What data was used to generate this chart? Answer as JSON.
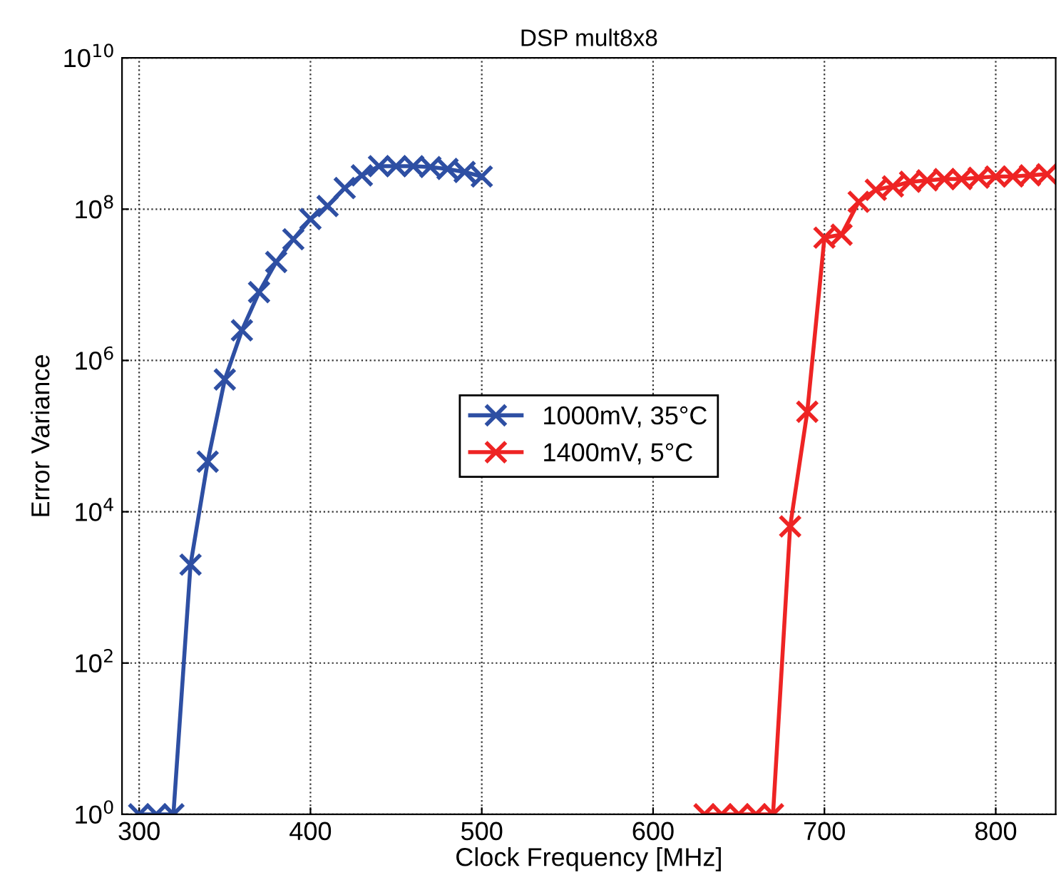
{
  "chart_data": {
    "type": "line",
    "title": "DSP mult8x8",
    "xlabel": "Clock Frequency [MHz]",
    "ylabel": "Error Variance",
    "log": "y",
    "grid": true,
    "legend": "center",
    "marker": "cross",
    "line_style": "solid",
    "xlim": [
      290,
      835
    ],
    "xticks": [
      300,
      400,
      500,
      600,
      700,
      800
    ],
    "ylim": [
      1,
      10000000000.0
    ],
    "yticks": [
      {
        "value": 1,
        "label": "10$^{0}$"
      },
      {
        "value": 100,
        "label": "10$^{2}$"
      },
      {
        "value": 10000,
        "label": "10$^{4}$"
      },
      {
        "value": 1000000,
        "label": "10$^{6}$"
      },
      {
        "value": 100000000,
        "label": "10$^{8}$"
      },
      {
        "value": 10000000000,
        "label": "10$^{10}$"
      }
    ],
    "series": [
      {
        "name": "1000mV, 35°C",
        "color": "#2e4fa3",
        "x": [
          300,
          310,
          320,
          330,
          340,
          350,
          360,
          370,
          380,
          390,
          400,
          410,
          420,
          430,
          440,
          450,
          460,
          470,
          480,
          490,
          500
        ],
        "values": [
          1,
          1,
          1,
          2000,
          46000,
          560000,
          2500000,
          8000000,
          20000000,
          40000000,
          74000000,
          110000000,
          190000000,
          280000000,
          370000000,
          370000000,
          370000000,
          360000000,
          340000000,
          310000000,
          270000000
        ]
      },
      {
        "name": "1400mV, 5°C",
        "color": "#ee2424",
        "x": [
          630,
          640,
          650,
          660,
          670,
          680,
          690,
          700,
          710,
          720,
          730,
          740,
          750,
          760,
          770,
          780,
          790,
          800,
          810,
          820,
          830
        ],
        "values": [
          1,
          1,
          1,
          1,
          1,
          6400,
          210000,
          42000000,
          46000000,
          125000000,
          180000000,
          200000000,
          230000000,
          240000000,
          250000000,
          250000000,
          260000000,
          270000000,
          270000000,
          280000000,
          290000000
        ]
      }
    ]
  }
}
